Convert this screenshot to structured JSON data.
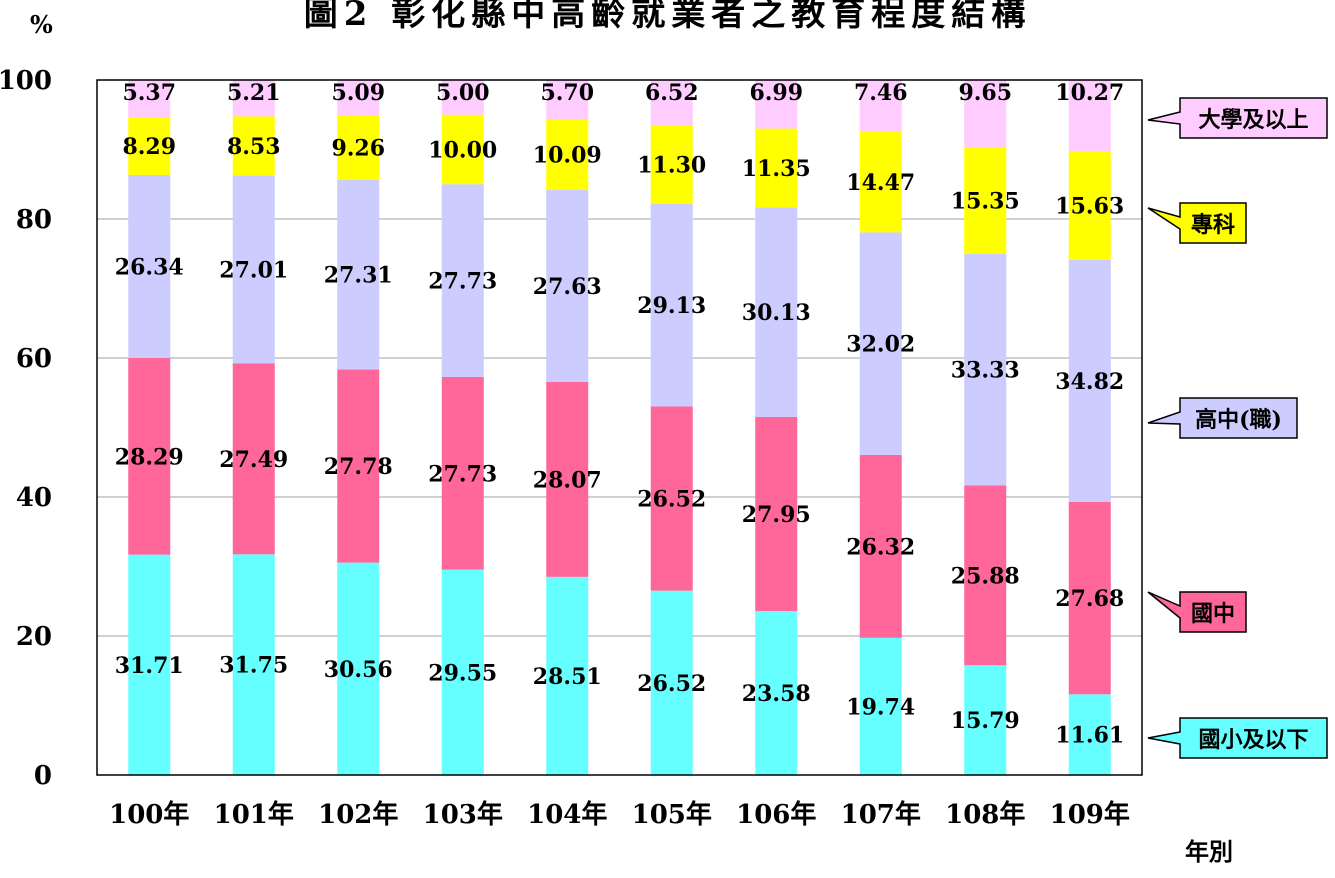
{
  "chart_data": {
    "type": "bar",
    "stacked": true,
    "title": "圖2 彰化縣中高齡就業者之教育程度結構",
    "ylabel": "%",
    "xlabel": "年別",
    "ylim": [
      0,
      100
    ],
    "yticks": [
      0,
      20,
      40,
      60,
      80,
      100
    ],
    "grid": true,
    "legend_position": "right",
    "categories": [
      "100年",
      "101年",
      "102年",
      "103年",
      "104年",
      "105年",
      "106年",
      "107年",
      "108年",
      "109年"
    ],
    "series": [
      {
        "name": "國小及以下",
        "color": "#66FFFF",
        "values": [
          31.71,
          31.75,
          30.56,
          29.55,
          28.51,
          26.52,
          23.58,
          19.74,
          15.79,
          11.61
        ],
        "labels": [
          "31.71",
          "31.75",
          "30.56",
          "29.55",
          "28.51",
          "26.52",
          "23.58",
          "19.74",
          "15.79",
          "11.61"
        ]
      },
      {
        "name": "國中",
        "color": "#FF6699",
        "values": [
          28.29,
          27.49,
          27.78,
          27.73,
          28.07,
          26.52,
          27.95,
          26.32,
          25.88,
          27.68
        ],
        "labels": [
          "28.29",
          "27.49",
          "27.78",
          "27.73",
          "28.07",
          "26.52",
          "27.95",
          "26.32",
          "25.88",
          "27.68"
        ]
      },
      {
        "name": "高中(職)",
        "color": "#CCCCFF",
        "values": [
          26.34,
          27.01,
          27.31,
          27.73,
          27.63,
          29.13,
          30.13,
          32.02,
          33.33,
          34.82
        ],
        "labels": [
          "26.34",
          "27.01",
          "27.31",
          "27.73",
          "27.63",
          "29.13",
          "30.13",
          "32.02",
          "33.33",
          "34.82"
        ]
      },
      {
        "name": "專科",
        "color": "#FFFF00",
        "values": [
          8.29,
          8.53,
          9.26,
          10.0,
          10.09,
          11.3,
          11.35,
          14.47,
          15.35,
          15.63
        ],
        "labels": [
          "8.29",
          "8.53",
          "9.26",
          "10.00",
          "10.09",
          "11.30",
          "11.35",
          "14.47",
          "15.35",
          "15.63"
        ]
      },
      {
        "name": "大學及以上",
        "color": "#FFCCFF",
        "values": [
          5.37,
          5.21,
          5.09,
          5.0,
          5.7,
          6.52,
          6.99,
          7.46,
          9.65,
          10.27
        ],
        "labels": [
          "5.37",
          "5.21",
          "5.09",
          "5.00",
          "5.70",
          "6.52",
          "6.99",
          "7.46",
          "9.65",
          "10.27"
        ]
      }
    ]
  }
}
